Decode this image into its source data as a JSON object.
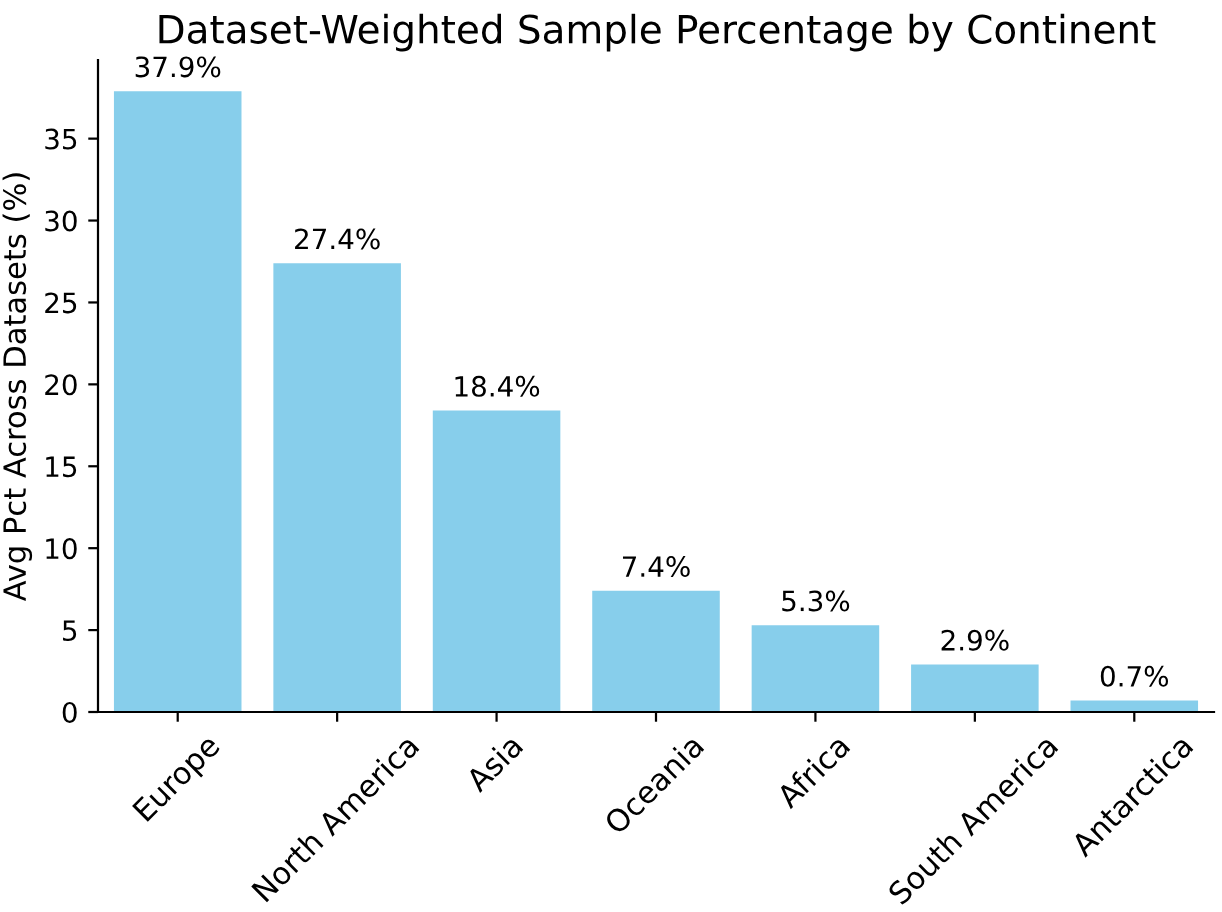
{
  "chart_data": {
    "type": "bar",
    "title": "Dataset-Weighted Sample Percentage by Continent",
    "ylabel": "Avg Pct Across Datasets (%)",
    "categories": [
      "Europe",
      "North America",
      "Asia",
      "Oceania",
      "Africa",
      "South America",
      "Antarctica"
    ],
    "values": [
      37.9,
      27.4,
      18.4,
      7.4,
      5.3,
      2.9,
      0.7
    ],
    "value_labels": [
      "37.9%",
      "27.4%",
      "18.4%",
      "7.4%",
      "5.3%",
      "2.9%",
      "0.7%"
    ],
    "color": "#87ceeb",
    "ylim": [
      0,
      39.8
    ],
    "yticks": [
      0,
      5,
      10,
      15,
      20,
      25,
      30,
      35
    ],
    "grid": false,
    "legend": false
  }
}
